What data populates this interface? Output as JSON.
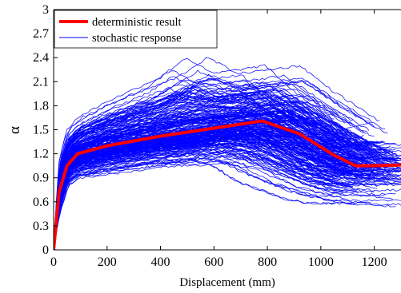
{
  "chart_data": {
    "type": "line",
    "xlabel": "Displacement (mm)",
    "ylabel": "α",
    "xlim": [
      0,
      1300
    ],
    "ylim": [
      0,
      3
    ],
    "x_ticks": [
      0,
      200,
      400,
      600,
      800,
      1000,
      1200
    ],
    "x_tick_labels": [
      "0",
      "200",
      "400",
      "600",
      "800",
      "1000",
      "1200"
    ],
    "y_ticks": [
      0,
      0.3,
      0.6,
      0.9,
      1.2,
      1.5,
      1.8,
      2.1,
      2.4,
      2.7,
      3
    ],
    "y_tick_labels": [
      "0",
      "0.3",
      "0.6",
      "0.9",
      "1.2",
      "1.5",
      "1.8",
      "2.1",
      "2.4",
      "2.7",
      "3"
    ],
    "grid": false,
    "legend_position": "top-left",
    "series": [
      {
        "name": "deterministic result",
        "color": "#ff0000",
        "style": "thick-line",
        "x": [
          0,
          20,
          50,
          90,
          200,
          400,
          600,
          780,
          920,
          1050,
          1130,
          1200,
          1300
        ],
        "y": [
          0,
          0.72,
          1.05,
          1.2,
          1.3,
          1.42,
          1.52,
          1.61,
          1.45,
          1.18,
          1.05,
          1.05,
          1.06
        ]
      },
      {
        "name": "stochastic response",
        "color": "#0000ff",
        "style": "thin-lines-ensemble",
        "envelope": {
          "x": [
            0,
            20,
            50,
            90,
            200,
            300,
            400,
            500,
            600,
            700,
            800,
            900,
            1000,
            1100,
            1200,
            1300
          ],
          "upper": [
            0,
            1.1,
            1.5,
            1.65,
            1.85,
            2.0,
            2.15,
            2.4,
            2.2,
            2.25,
            2.3,
            2.0,
            1.75,
            1.5,
            1.6,
            1.55
          ],
          "median": [
            0,
            0.72,
            1.05,
            1.2,
            1.3,
            1.36,
            1.42,
            1.47,
            1.52,
            1.57,
            1.61,
            1.45,
            1.25,
            1.08,
            1.05,
            1.06
          ],
          "lower": [
            0,
            0.45,
            0.8,
            0.9,
            0.95,
            1.0,
            1.05,
            1.05,
            1.1,
            1.0,
            0.8,
            0.7,
            0.6,
            0.55,
            0.55,
            0.55
          ]
        }
      }
    ]
  }
}
